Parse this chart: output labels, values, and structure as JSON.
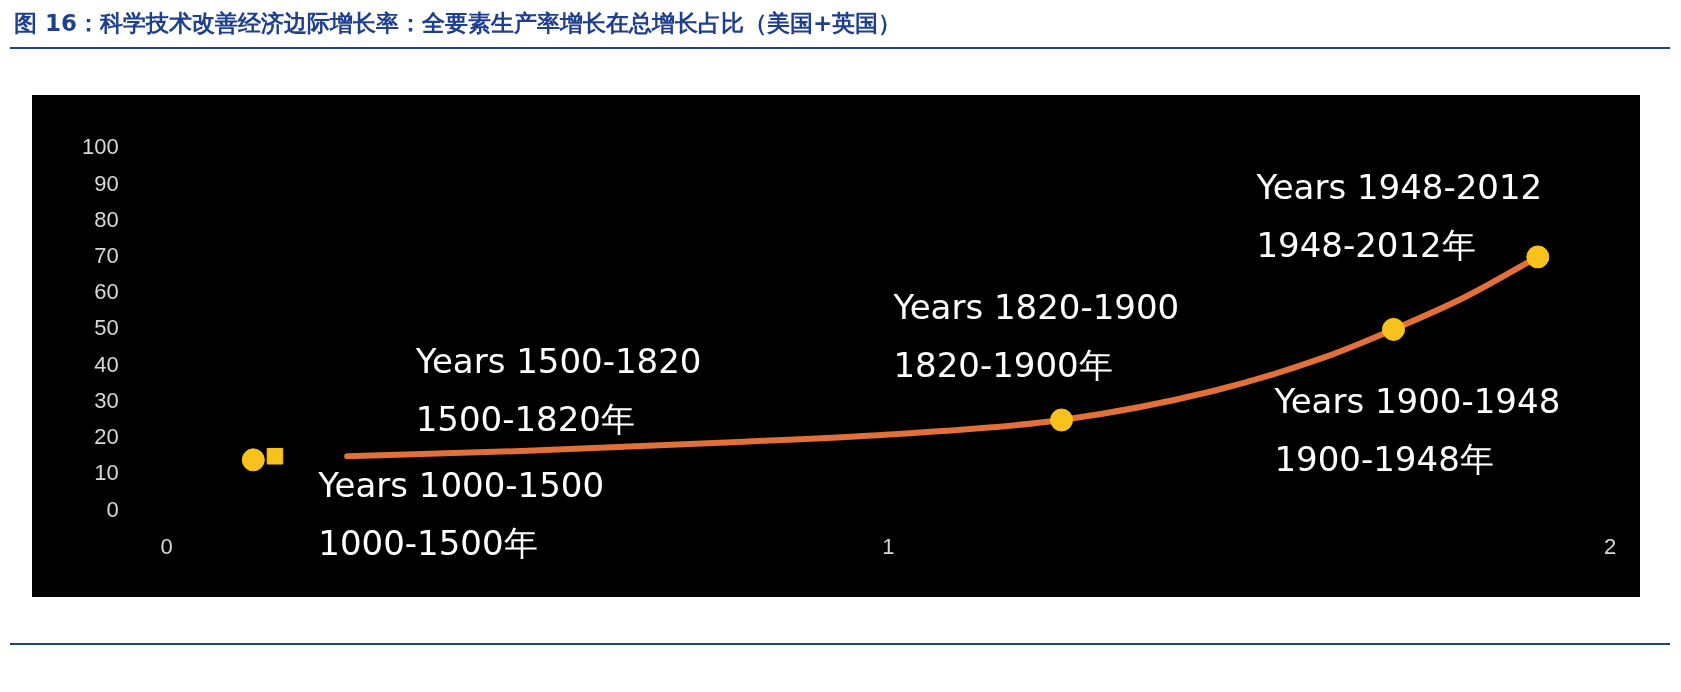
{
  "chart_data": {
    "type": "scatter",
    "title": "图 16：科学技术改善经济边际增长率：全要素生产率增长在总增长占比（美国+英国）",
    "xlim": [
      0,
      2
    ],
    "xticks": [
      0,
      1,
      2
    ],
    "ylim": [
      0,
      100
    ],
    "yticks": [
      0,
      10,
      20,
      30,
      40,
      50,
      60,
      70,
      80,
      90,
      100
    ],
    "grid": false,
    "legend": false,
    "series": [
      {
        "type": "line",
        "color": "#e2703a",
        "marker": "none",
        "x": [
          0.25,
          0.5,
          0.8,
          1.0,
          1.24,
          1.45,
          1.6,
          1.7,
          1.8,
          1.9
        ],
        "values": [
          15,
          16.5,
          19,
          21,
          25,
          33,
          42,
          50,
          59,
          70
        ]
      },
      {
        "color": "#f7c21b",
        "marker": "circle",
        "x": [
          0.12,
          1.24,
          1.7,
          1.9
        ],
        "values": [
          14,
          25,
          50,
          70
        ]
      },
      {
        "color": "#f7c21b",
        "marker": "square",
        "x": [
          0.15
        ],
        "values": [
          15
        ]
      }
    ],
    "annotations": [
      {
        "text": "Years 1000-1500\n1000-1500年",
        "x": 0.12,
        "y": 14
      },
      {
        "text": "Years 1500-1820\n1500-1820年",
        "x": 0.25,
        "y": 15
      },
      {
        "text": "Years 1820-1900\n1820-1900年",
        "x": 1.24,
        "y": 25
      },
      {
        "text": "Years 1900-1948\n1900-1948年",
        "x": 1.7,
        "y": 50
      },
      {
        "text": "Years 1948-2012\n1948-2012年",
        "x": 1.9,
        "y": 70
      }
    ]
  }
}
